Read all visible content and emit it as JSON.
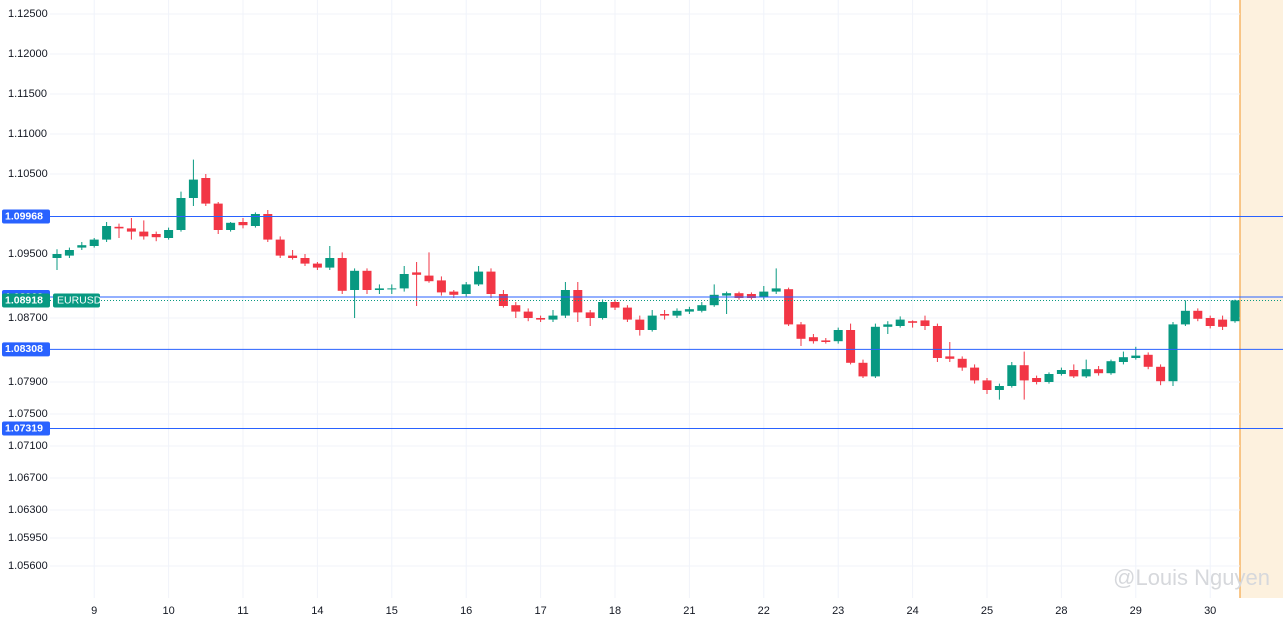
{
  "chart_data": {
    "type": "candlestick",
    "symbol": "EURUSD",
    "watermark": "@Louis Nguyen",
    "categories": [
      null,
      null,
      null,
      "9",
      null,
      null,
      null,
      null,
      null,
      "10",
      null,
      null,
      null,
      null,
      null,
      "11",
      null,
      null,
      null,
      null,
      null,
      "14",
      null,
      null,
      null,
      null,
      null,
      "15",
      null,
      null,
      null,
      null,
      null,
      "16",
      null,
      null,
      null,
      null,
      null,
      "17",
      null,
      null,
      null,
      null,
      null,
      "18",
      null,
      null,
      null,
      null,
      null,
      "21",
      null,
      null,
      null,
      null,
      null,
      "22",
      null,
      null,
      null,
      null,
      null,
      "23",
      null,
      null,
      null,
      null,
      null,
      "24",
      null,
      null,
      null,
      null,
      null,
      "25",
      null,
      null,
      null,
      null,
      null,
      "28",
      null,
      null,
      null,
      null,
      null,
      "29",
      null,
      null,
      null,
      null,
      null,
      "30",
      null,
      null
    ],
    "open": [
      1.0945,
      1.0948,
      1.0958,
      1.096,
      1.0968,
      1.0984,
      1.0982,
      1.0978,
      1.0975,
      1.097,
      1.098,
      1.102,
      1.1045,
      1.1013,
      1.098,
      1.099,
      1.0985,
      1.1,
      1.0968,
      1.0948,
      1.0945,
      1.0938,
      1.0933,
      1.0945,
      1.0905,
      1.0929,
      1.0905,
      1.0906,
      1.0907,
      1.0927,
      1.0923,
      1.0917,
      1.0903,
      1.09,
      1.0912,
      1.0928,
      1.09,
      1.0886,
      1.0878,
      1.087,
      1.0868,
      1.0873,
      1.0905,
      1.0877,
      1.087,
      1.089,
      1.0883,
      1.0868,
      1.0855,
      1.0875,
      1.0873,
      1.0878,
      1.0879,
      1.0886,
      1.0898,
      1.0901,
      1.09,
      1.0896,
      1.0903,
      1.0906,
      1.0862,
      1.0846,
      1.0842,
      1.0841,
      1.0855,
      1.0814,
      1.0797,
      1.0859,
      1.086,
      1.0866,
      1.0867,
      1.086,
      1.0822,
      1.0819,
      1.0808,
      1.0792,
      1.078,
      1.0785,
      1.0811,
      1.0795,
      1.079,
      1.08,
      1.0805,
      1.0797,
      1.0806,
      1.0801,
      1.0815,
      1.082,
      1.0824,
      1.0809,
      1.0791,
      1.0862,
      1.0879,
      1.087,
      1.0868,
      1.0866
    ],
    "high": [
      1.0956,
      1.0958,
      1.0965,
      1.097,
      1.099,
      1.0988,
      1.0995,
      1.0992,
      1.0978,
      1.0983,
      1.1028,
      1.1068,
      1.105,
      1.1015,
      1.099,
      1.0995,
      1.1002,
      1.1005,
      1.0972,
      1.0955,
      1.095,
      1.094,
      1.096,
      1.0952,
      1.0932,
      1.0932,
      1.0912,
      1.0912,
      1.0935,
      1.094,
      1.0952,
      1.0922,
      1.0905,
      1.0915,
      1.0935,
      1.0932,
      1.0905,
      1.089,
      1.0882,
      1.0873,
      1.088,
      1.0915,
      1.0915,
      1.088,
      1.0893,
      1.0893,
      1.0886,
      1.0873,
      1.088,
      1.088,
      1.0882,
      1.0884,
      1.089,
      1.0912,
      1.0903,
      1.0903,
      1.0902,
      1.091,
      1.0932,
      1.0908,
      1.0865,
      1.085,
      1.0845,
      1.0858,
      1.0863,
      1.0818,
      1.0863,
      1.0866,
      1.0872,
      1.0867,
      1.0873,
      1.0863,
      1.084,
      1.0822,
      1.0812,
      1.0795,
      1.0788,
      1.0815,
      1.0828,
      1.0798,
      1.0802,
      1.0808,
      1.0812,
      1.0818,
      1.081,
      1.0818,
      1.0828,
      1.0834,
      1.0827,
      1.0812,
      1.0865,
      1.0892,
      1.0882,
      1.0873,
      1.0873,
      1.0893
    ],
    "low": [
      1.093,
      1.0945,
      1.0955,
      1.0958,
      1.0965,
      1.097,
      1.0968,
      1.0968,
      1.0966,
      1.0968,
      1.0978,
      1.101,
      1.101,
      1.0975,
      1.0978,
      1.0982,
      1.0983,
      1.0965,
      1.0945,
      1.0943,
      1.0935,
      1.093,
      1.093,
      1.09,
      1.087,
      1.09,
      1.09,
      1.09,
      1.0903,
      1.0885,
      1.0914,
      1.0898,
      1.0895,
      1.0897,
      1.091,
      1.0895,
      1.0883,
      1.087,
      1.0866,
      1.0865,
      1.0865,
      1.087,
      1.0865,
      1.086,
      1.0868,
      1.088,
      1.0865,
      1.0848,
      1.0853,
      1.0868,
      1.087,
      1.0875,
      1.0877,
      1.0884,
      1.0875,
      1.0893,
      1.0893,
      1.0893,
      1.09,
      1.086,
      1.0835,
      1.0838,
      1.0838,
      1.0838,
      1.0812,
      1.0795,
      1.0795,
      1.085,
      1.0858,
      1.0858,
      1.0855,
      1.0815,
      1.0815,
      1.0804,
      1.0788,
      1.0775,
      1.0768,
      1.0783,
      1.0768,
      1.0787,
      1.0788,
      1.0798,
      1.0795,
      1.0795,
      1.0798,
      1.0799,
      1.0812,
      1.0818,
      1.0806,
      1.0786,
      1.0785,
      1.086,
      1.0866,
      1.0857,
      1.0855,
      1.0864
    ],
    "close": [
      1.095,
      1.0955,
      1.0961,
      1.0968,
      1.0985,
      1.0982,
      1.0978,
      1.0972,
      1.0971,
      1.098,
      1.102,
      1.1043,
      1.1013,
      1.098,
      1.0989,
      1.0986,
      1.1,
      1.0968,
      1.0948,
      1.0945,
      1.0938,
      1.0933,
      1.0945,
      1.0904,
      1.0929,
      1.0905,
      1.0907,
      1.0907,
      1.0925,
      1.0924,
      1.0916,
      1.0902,
      1.0899,
      1.0912,
      1.0928,
      1.09,
      1.0885,
      1.0878,
      1.087,
      1.0868,
      1.0873,
      1.0905,
      1.0877,
      1.087,
      1.089,
      1.0883,
      1.0868,
      1.0855,
      1.0873,
      1.0873,
      1.0879,
      1.0881,
      1.0886,
      1.0899,
      1.0901,
      1.0895,
      1.0895,
      1.0903,
      1.0907,
      1.0862,
      1.0844,
      1.0841,
      1.084,
      1.0855,
      1.0814,
      1.0797,
      1.0859,
      1.0862,
      1.0868,
      1.0864,
      1.086,
      1.082,
      1.0819,
      1.0808,
      1.0792,
      1.078,
      1.0785,
      1.0811,
      1.0792,
      1.079,
      1.08,
      1.0805,
      1.0797,
      1.0806,
      1.0801,
      1.0816,
      1.0821,
      1.0823,
      1.0809,
      1.0791,
      1.0862,
      1.0879,
      1.0869,
      1.086,
      1.0859,
      1.0892
    ],
    "up_color": "#089981",
    "down_color": "#f23645",
    "levels": [
      1.09968,
      1.08962,
      1.08308,
      1.07319
    ],
    "level_color": "#2962ff",
    "last_price": 1.08918,
    "ylim": [
      1.052,
      1.12675
    ],
    "yticks": [
      {
        "value": 1.125,
        "label": "1.12500"
      },
      {
        "value": 1.12,
        "label": "1.12000"
      },
      {
        "value": 1.115,
        "label": "1.11500"
      },
      {
        "value": 1.11,
        "label": "1.11000"
      },
      {
        "value": 1.105,
        "label": "1.10500"
      },
      {
        "value": 1.095,
        "label": "1.09500"
      },
      {
        "value": 1.087,
        "label": "1.08700"
      },
      {
        "value": 1.079,
        "label": "1.07900"
      },
      {
        "value": 1.075,
        "label": "1.07500"
      },
      {
        "value": 1.071,
        "label": "1.07100"
      },
      {
        "value": 1.067,
        "label": "1.06700"
      },
      {
        "value": 1.063,
        "label": "1.06300"
      },
      {
        "value": 1.0595,
        "label": "1.05950"
      },
      {
        "value": 1.056,
        "label": "1.05600"
      }
    ],
    "grid": true
  }
}
